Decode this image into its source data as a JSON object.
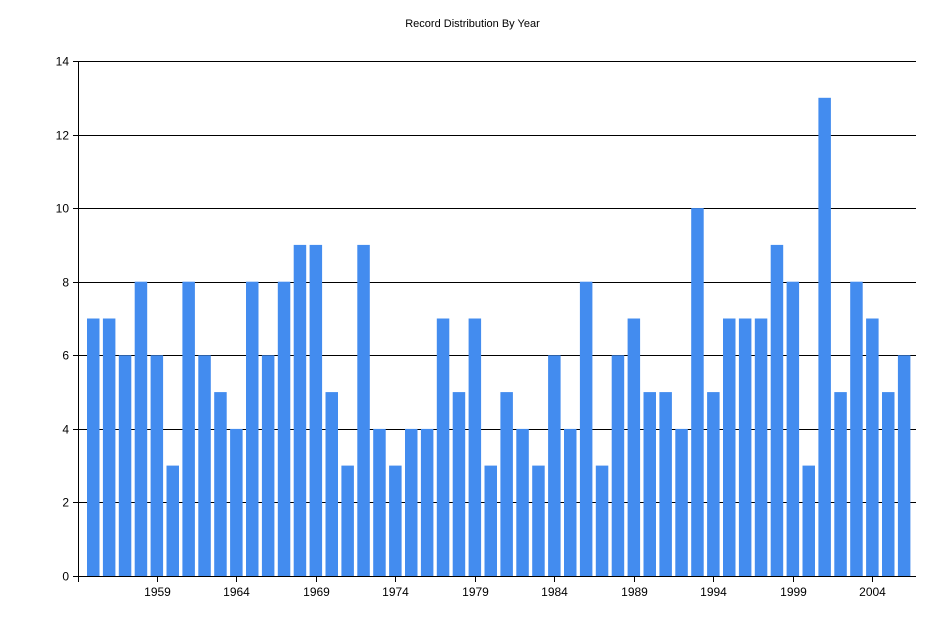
{
  "chart_data": {
    "type": "bar",
    "title": "Record Distribution By Year",
    "xlabel": "",
    "ylabel": "",
    "categories": [
      1955,
      1956,
      1957,
      1958,
      1959,
      1960,
      1961,
      1962,
      1963,
      1964,
      1965,
      1966,
      1967,
      1968,
      1969,
      1970,
      1971,
      1972,
      1973,
      1974,
      1975,
      1976,
      1977,
      1978,
      1979,
      1980,
      1981,
      1982,
      1983,
      1984,
      1985,
      1986,
      1987,
      1988,
      1989,
      1990,
      1991,
      1992,
      1993,
      1994,
      1995,
      1996,
      1997,
      1998,
      1999,
      2000,
      2001,
      2002,
      2003,
      2004,
      2005,
      2006
    ],
    "values": [
      7,
      7,
      6,
      8,
      6,
      3,
      8,
      6,
      5,
      4,
      8,
      6,
      8,
      9,
      9,
      5,
      3,
      9,
      4,
      3,
      4,
      4,
      7,
      5,
      7,
      3,
      5,
      4,
      3,
      6,
      4,
      8,
      3,
      6,
      7,
      5,
      5,
      4,
      10,
      5,
      7,
      7,
      7,
      9,
      8,
      3,
      13,
      5,
      8,
      7,
      5,
      6
    ],
    "x_tick_labels": [
      "1959",
      "1964",
      "1969",
      "1974",
      "1979",
      "1984",
      "1989",
      "1994",
      "1999",
      "2004"
    ],
    "y_tick_labels": [
      "0",
      "2",
      "4",
      "6",
      "8",
      "10",
      "12",
      "14"
    ],
    "ylim": [
      0,
      14
    ],
    "grid": true,
    "legend": "none",
    "bar_color": "#438cef"
  }
}
